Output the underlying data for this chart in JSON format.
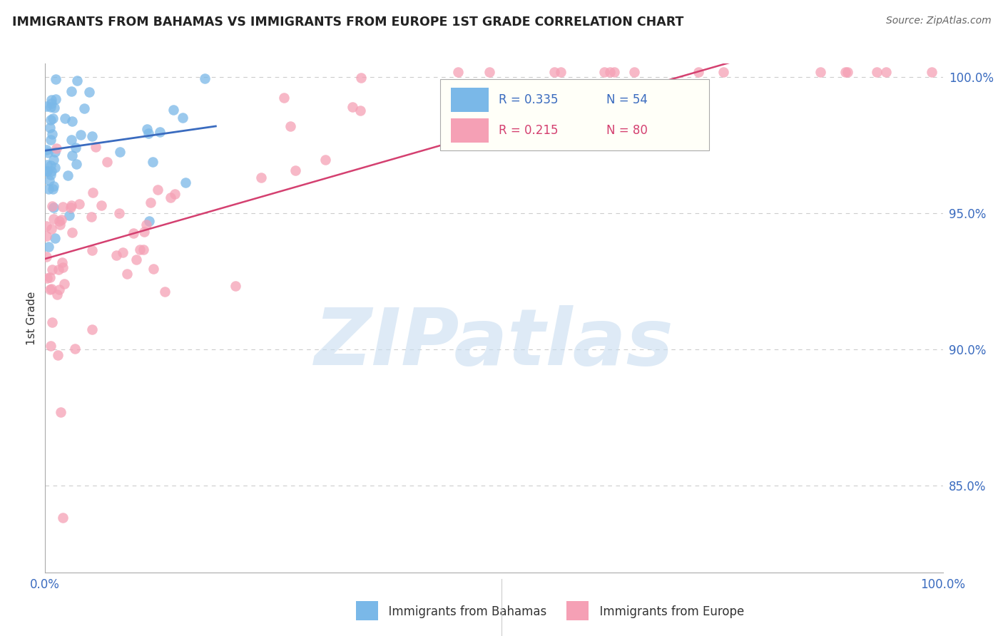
{
  "title": "IMMIGRANTS FROM BAHAMAS VS IMMIGRANTS FROM EUROPE 1ST GRADE CORRELATION CHART",
  "source_text": "Source: ZipAtlas.com",
  "ylabel": "1st Grade",
  "watermark": "ZIPatlas",
  "legend_blue_r": "0.335",
  "legend_blue_n": "54",
  "legend_pink_r": "0.215",
  "legend_pink_n": "80",
  "blue_color": "#7ab8e8",
  "pink_color": "#f5a0b5",
  "blue_line_color": "#3a6bbf",
  "pink_line_color": "#d44070",
  "xlim": [
    0.0,
    1.0
  ],
  "ylim": [
    0.818,
    1.005
  ],
  "y_tick_positions": [
    0.85,
    0.9,
    0.95,
    1.0
  ],
  "y_tick_labels": [
    "85.0%",
    "90.0%",
    "95.0%",
    "100.0%"
  ],
  "background_color": "#ffffff",
  "grid_color": "#cccccc",
  "title_color": "#222222",
  "label_color": "#3a6bbf",
  "source_color": "#666666",
  "watermark_color": "#c8ddf0",
  "legend_bg_color": "#fffff8",
  "legend_border_color": "#aaaaaa",
  "bottom_legend_label_color": "#333333"
}
